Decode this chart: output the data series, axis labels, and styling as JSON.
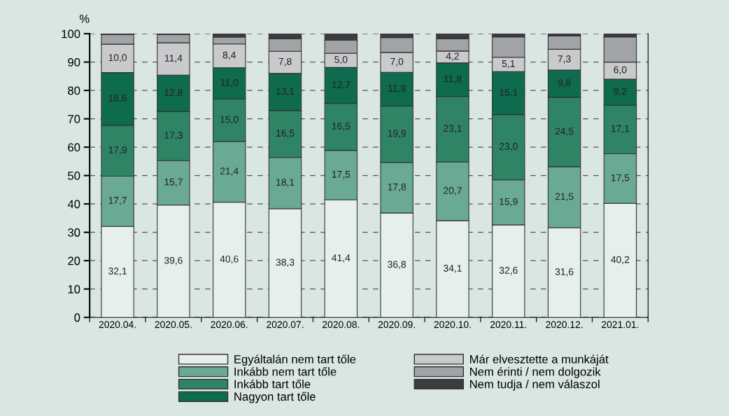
{
  "chart_data": {
    "type": "bar",
    "stacked": true,
    "ylabel": "%",
    "categories": [
      "2020.04.",
      "2020.05.",
      "2020.06.",
      "2020.07.",
      "2020.08.",
      "2020.09.",
      "2020.10.",
      "2020.11.",
      "2020.12.",
      "2021.01."
    ],
    "series": [
      {
        "name": "Egyáltalán nem tart tőle",
        "color": "#e6efeb",
        "values": [
          32.1,
          39.6,
          40.6,
          38.3,
          41.4,
          36.8,
          34.1,
          32.6,
          31.6,
          40.2
        ],
        "value_labels": [
          "32,1",
          "39,6",
          "40,6",
          "38,3",
          "41,4",
          "36,8",
          "34,1",
          "32,6",
          "31,6",
          "40,2"
        ]
      },
      {
        "name": "Inkább nem tart tőle",
        "color": "#6aaa94",
        "values": [
          17.7,
          15.7,
          21.4,
          18.1,
          17.5,
          17.8,
          20.7,
          15.9,
          21.5,
          17.5
        ],
        "value_labels": [
          "17,7",
          "15,7",
          "21,4",
          "18,1",
          "17,5",
          "17,8",
          "20,7",
          "15,9",
          "21,5",
          "17,5"
        ]
      },
      {
        "name": "Inkább tart tőle",
        "color": "#2f8466",
        "values": [
          17.9,
          17.3,
          15.0,
          16.5,
          16.5,
          19.9,
          23.1,
          23.0,
          24.5,
          17.1
        ],
        "value_labels": [
          "17,9",
          "17,3",
          "15,0",
          "16,5",
          "16,5",
          "19,9",
          "23,1",
          "23,0",
          "24,5",
          "17,1"
        ]
      },
      {
        "name": "Nagyon tart tőle",
        "color": "#0e6b4e",
        "values": [
          18.6,
          12.8,
          11.0,
          13.1,
          12.7,
          11.9,
          11.8,
          15.1,
          9.6,
          9.2
        ],
        "value_labels": [
          "18,6",
          "12,8",
          "11,0",
          "13,1",
          "12,7",
          "11,9",
          "11,8",
          "15,1",
          "9,6",
          "9,2"
        ]
      },
      {
        "name": "Már elvesztette a munkáját",
        "color": "#c9cacc",
        "values": [
          10.0,
          11.4,
          8.4,
          7.8,
          5.0,
          7.0,
          4.2,
          5.1,
          7.3,
          6.0
        ],
        "value_labels": [
          "10,0",
          "11,4",
          "8,4",
          "7,8",
          "5,0",
          "7,0",
          "4,2",
          "5,1",
          "7,3",
          "6,0"
        ]
      },
      {
        "name": "Nem érinti / nem dolgozik",
        "color": "#a2a3a6",
        "values": [
          3.4,
          2.9,
          2.4,
          4.4,
          4.6,
          5.2,
          4.3,
          7.2,
          4.7,
          8.9
        ]
      },
      {
        "name": "Nem tudja / nem válaszol",
        "color": "#3c3c3e",
        "values": [
          0.3,
          0.3,
          1.2,
          1.8,
          2.3,
          1.4,
          1.8,
          1.1,
          0.8,
          1.1
        ]
      }
    ],
    "ylim": [
      0,
      100
    ],
    "yticks": [
      0,
      10,
      20,
      30,
      40,
      50,
      60,
      70,
      80,
      90,
      100
    ],
    "grid": "y",
    "legend": "bottom"
  }
}
